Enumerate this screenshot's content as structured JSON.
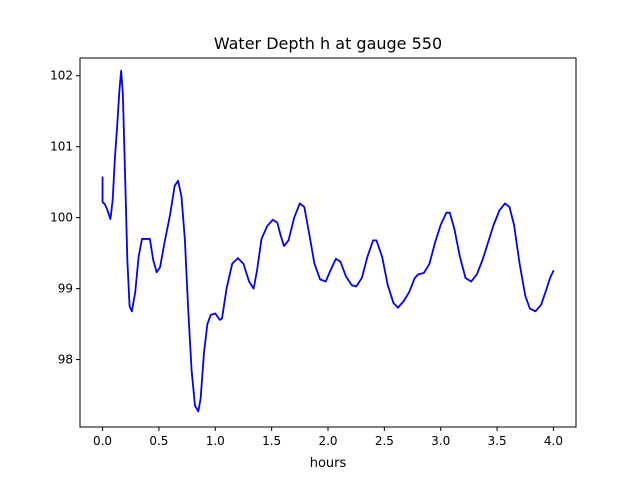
{
  "chart_data": {
    "type": "line",
    "title": "Water Depth h at gauge 550",
    "xlabel": "hours",
    "ylabel": "",
    "xlim": [
      -0.2,
      4.2
    ],
    "ylim": [
      97.05,
      102.25
    ],
    "xticks": [
      0.0,
      0.5,
      1.0,
      1.5,
      2.0,
      2.5,
      3.0,
      3.5,
      4.0
    ],
    "xtick_labels": [
      "0.0",
      "0.5",
      "1.0",
      "1.5",
      "2.0",
      "2.5",
      "3.0",
      "3.5",
      "4.0"
    ],
    "yticks": [
      98,
      99,
      100,
      101,
      102
    ],
    "ytick_labels": [
      "98",
      "99",
      "100",
      "101",
      "102"
    ],
    "grid": false,
    "legend": "none",
    "series": [
      {
        "color": "#0000ff",
        "points": [
          [
            0.0,
            100.57
          ],
          [
            0.0,
            100.22
          ],
          [
            0.02,
            100.19
          ],
          [
            0.04,
            100.12
          ],
          [
            0.07,
            99.98
          ],
          [
            0.09,
            100.25
          ],
          [
            0.11,
            100.85
          ],
          [
            0.13,
            101.3
          ],
          [
            0.15,
            101.8
          ],
          [
            0.165,
            102.07
          ],
          [
            0.18,
            101.75
          ],
          [
            0.2,
            100.6
          ],
          [
            0.22,
            99.4
          ],
          [
            0.24,
            98.75
          ],
          [
            0.26,
            98.68
          ],
          [
            0.29,
            98.95
          ],
          [
            0.32,
            99.45
          ],
          [
            0.35,
            99.7
          ],
          [
            0.38,
            99.7
          ],
          [
            0.42,
            99.7
          ],
          [
            0.45,
            99.4
          ],
          [
            0.48,
            99.23
          ],
          [
            0.51,
            99.3
          ],
          [
            0.55,
            99.65
          ],
          [
            0.6,
            100.05
          ],
          [
            0.64,
            100.45
          ],
          [
            0.67,
            100.52
          ],
          [
            0.7,
            100.3
          ],
          [
            0.73,
            99.7
          ],
          [
            0.76,
            98.7
          ],
          [
            0.79,
            97.85
          ],
          [
            0.82,
            97.35
          ],
          [
            0.85,
            97.27
          ],
          [
            0.87,
            97.45
          ],
          [
            0.9,
            98.1
          ],
          [
            0.93,
            98.5
          ],
          [
            0.96,
            98.63
          ],
          [
            1.0,
            98.65
          ],
          [
            1.04,
            98.56
          ],
          [
            1.06,
            98.58
          ],
          [
            1.1,
            99.0
          ],
          [
            1.15,
            99.35
          ],
          [
            1.2,
            99.43
          ],
          [
            1.25,
            99.35
          ],
          [
            1.3,
            99.1
          ],
          [
            1.34,
            99.0
          ],
          [
            1.37,
            99.25
          ],
          [
            1.41,
            99.7
          ],
          [
            1.46,
            99.88
          ],
          [
            1.51,
            99.97
          ],
          [
            1.55,
            99.93
          ],
          [
            1.58,
            99.75
          ],
          [
            1.61,
            99.6
          ],
          [
            1.65,
            99.68
          ],
          [
            1.7,
            100.0
          ],
          [
            1.75,
            100.2
          ],
          [
            1.79,
            100.15
          ],
          [
            1.83,
            99.8
          ],
          [
            1.88,
            99.35
          ],
          [
            1.93,
            99.13
          ],
          [
            1.98,
            99.1
          ],
          [
            2.02,
            99.25
          ],
          [
            2.07,
            99.42
          ],
          [
            2.11,
            99.38
          ],
          [
            2.16,
            99.17
          ],
          [
            2.21,
            99.05
          ],
          [
            2.25,
            99.03
          ],
          [
            2.3,
            99.15
          ],
          [
            2.35,
            99.45
          ],
          [
            2.4,
            99.68
          ],
          [
            2.43,
            99.68
          ],
          [
            2.48,
            99.45
          ],
          [
            2.53,
            99.05
          ],
          [
            2.58,
            98.8
          ],
          [
            2.62,
            98.73
          ],
          [
            2.67,
            98.82
          ],
          [
            2.72,
            98.95
          ],
          [
            2.77,
            99.15
          ],
          [
            2.8,
            99.2
          ],
          [
            2.85,
            99.22
          ],
          [
            2.9,
            99.35
          ],
          [
            2.95,
            99.65
          ],
          [
            3.0,
            99.9
          ],
          [
            3.05,
            100.07
          ],
          [
            3.08,
            100.07
          ],
          [
            3.12,
            99.85
          ],
          [
            3.17,
            99.45
          ],
          [
            3.22,
            99.15
          ],
          [
            3.27,
            99.1
          ],
          [
            3.32,
            99.2
          ],
          [
            3.37,
            99.4
          ],
          [
            3.42,
            99.65
          ],
          [
            3.47,
            99.9
          ],
          [
            3.52,
            100.1
          ],
          [
            3.57,
            100.2
          ],
          [
            3.61,
            100.15
          ],
          [
            3.65,
            99.9
          ],
          [
            3.7,
            99.35
          ],
          [
            3.75,
            98.9
          ],
          [
            3.79,
            98.72
          ],
          [
            3.84,
            98.68
          ],
          [
            3.89,
            98.77
          ],
          [
            3.94,
            99.0
          ],
          [
            3.97,
            99.15
          ],
          [
            4.0,
            99.25
          ]
        ]
      }
    ]
  }
}
